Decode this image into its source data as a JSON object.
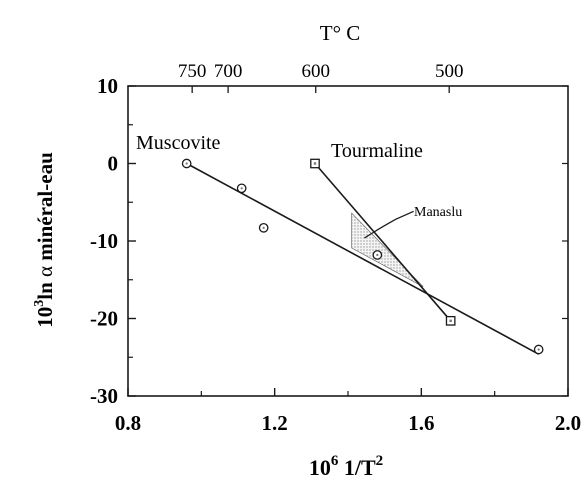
{
  "chart_data": {
    "type": "scatter",
    "top_axis_title": "T° C",
    "top_ticks": [
      {
        "label": "750",
        "x": 0.975
      },
      {
        "label": "700",
        "x": 1.073
      },
      {
        "label": "600",
        "x": 1.312
      },
      {
        "label": "500",
        "x": 1.676
      }
    ],
    "xlabel_base": "10",
    "xlabel_exp": "6",
    "xlabel_rest": " 1/T",
    "xlabel_exp2": "2",
    "ylabel_prefix": "10",
    "ylabel_exp": "3",
    "ylabel_rest": "ln ",
    "ylabel_alpha": "α",
    "ylabel_suffix": " minéral-eau",
    "xlim": [
      0.8,
      2.0
    ],
    "ylim": [
      -30,
      10
    ],
    "x_ticks": [
      "0.8",
      "1.2",
      "1.6",
      "2.0"
    ],
    "x_tick_values": [
      0.8,
      1.2,
      1.6,
      2.0
    ],
    "y_ticks": [
      "10",
      "0",
      "-10",
      "-20",
      "-30"
    ],
    "y_tick_values": [
      10,
      0,
      -10,
      -20,
      -30
    ],
    "series": [
      {
        "name": "Muscovite",
        "marker": "circle",
        "points": [
          [
            0.96,
            0.0
          ],
          [
            1.11,
            -3.2
          ],
          [
            1.17,
            -8.3
          ],
          [
            1.48,
            -11.8
          ],
          [
            1.92,
            -24.0
          ]
        ],
        "fit_line": [
          [
            0.96,
            0.0
          ],
          [
            1.92,
            -24.6
          ]
        ]
      },
      {
        "name": "Tourmaline",
        "marker": "square",
        "points": [
          [
            1.31,
            0.0
          ],
          [
            1.68,
            -20.3
          ]
        ],
        "fit_line": [
          [
            1.31,
            0.0
          ],
          [
            1.68,
            -20.3
          ]
        ]
      }
    ],
    "annotation": {
      "text": "Manaslu",
      "region": [
        [
          1.41,
          -6.4
        ],
        [
          1.41,
          -10.9
        ],
        [
          1.605,
          -15.9
        ]
      ]
    }
  }
}
